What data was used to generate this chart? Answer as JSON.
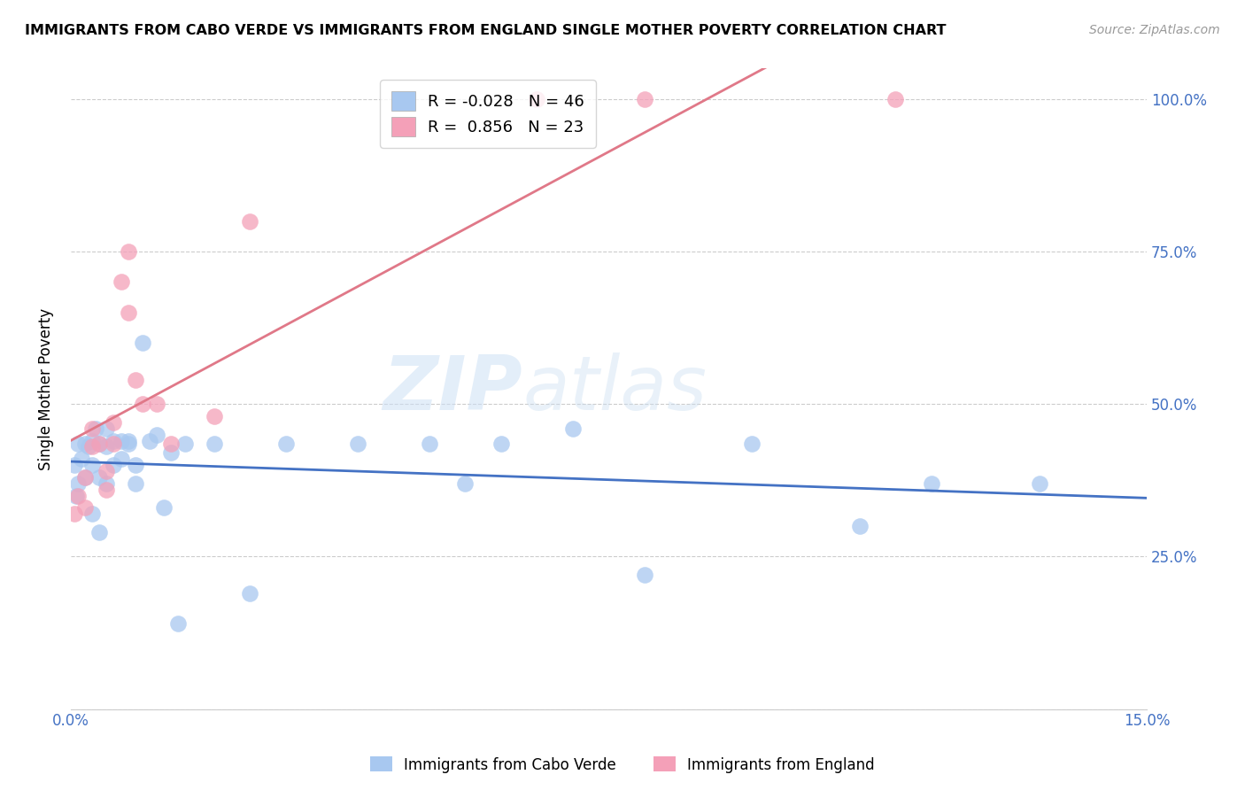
{
  "title": "IMMIGRANTS FROM CABO VERDE VS IMMIGRANTS FROM ENGLAND SINGLE MOTHER POVERTY CORRELATION CHART",
  "source": "Source: ZipAtlas.com",
  "ylabel_left": "Single Mother Poverty",
  "xlim": [
    0.0,
    0.15
  ],
  "ylim": [
    0.0,
    1.05
  ],
  "yticks": [
    0.0,
    0.25,
    0.5,
    0.75,
    1.0
  ],
  "ytick_labels": [
    "",
    "25.0%",
    "50.0%",
    "75.0%",
    "100.0%"
  ],
  "xticks": [
    0.0,
    0.03,
    0.06,
    0.09,
    0.12,
    0.15
  ],
  "xtick_labels": [
    "0.0%",
    "",
    "",
    "",
    "",
    "15.0%"
  ],
  "cabo_verde_R": -0.028,
  "cabo_verde_N": 46,
  "england_R": 0.856,
  "england_N": 23,
  "cabo_verde_color": "#a8c8f0",
  "england_color": "#f4a0b8",
  "cabo_verde_line_color": "#4472c4",
  "england_line_color": "#e07888",
  "watermark_zip": "ZIP",
  "watermark_atlas": "atlas",
  "cabo_verde_x": [
    0.0005,
    0.0008,
    0.001,
    0.001,
    0.0015,
    0.002,
    0.002,
    0.0025,
    0.003,
    0.003,
    0.003,
    0.0035,
    0.004,
    0.004,
    0.004,
    0.005,
    0.005,
    0.005,
    0.006,
    0.006,
    0.007,
    0.007,
    0.008,
    0.008,
    0.009,
    0.009,
    0.01,
    0.011,
    0.012,
    0.013,
    0.014,
    0.015,
    0.016,
    0.02,
    0.025,
    0.03,
    0.04,
    0.05,
    0.055,
    0.06,
    0.07,
    0.08,
    0.095,
    0.11,
    0.12,
    0.135
  ],
  "cabo_verde_y": [
    0.4,
    0.35,
    0.435,
    0.37,
    0.41,
    0.435,
    0.38,
    0.43,
    0.44,
    0.4,
    0.32,
    0.46,
    0.435,
    0.38,
    0.29,
    0.46,
    0.43,
    0.37,
    0.44,
    0.4,
    0.44,
    0.41,
    0.435,
    0.44,
    0.4,
    0.37,
    0.6,
    0.44,
    0.45,
    0.33,
    0.42,
    0.14,
    0.435,
    0.435,
    0.19,
    0.435,
    0.435,
    0.435,
    0.37,
    0.435,
    0.46,
    0.22,
    0.435,
    0.3,
    0.37,
    0.37
  ],
  "england_x": [
    0.0005,
    0.001,
    0.002,
    0.002,
    0.003,
    0.003,
    0.004,
    0.005,
    0.005,
    0.006,
    0.006,
    0.007,
    0.008,
    0.008,
    0.009,
    0.01,
    0.012,
    0.014,
    0.02,
    0.025,
    0.065,
    0.08,
    0.115
  ],
  "england_y": [
    0.32,
    0.35,
    0.33,
    0.38,
    0.46,
    0.43,
    0.435,
    0.39,
    0.36,
    0.47,
    0.435,
    0.7,
    0.65,
    0.75,
    0.54,
    0.5,
    0.5,
    0.435,
    0.48,
    0.8,
    1.0,
    1.0,
    1.0
  ]
}
